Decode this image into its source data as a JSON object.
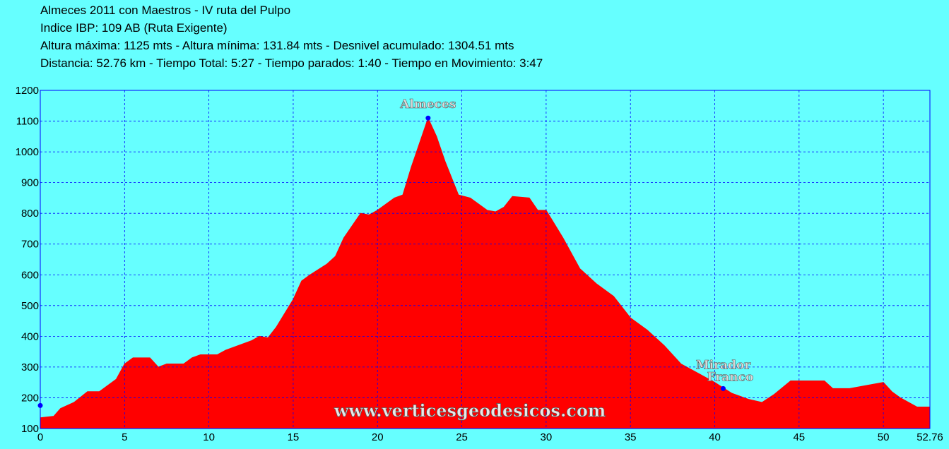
{
  "chart_data": {
    "type": "area",
    "title_lines": [
      "Almeces 2011 con Maestros - IV ruta del Pulpo",
      "Indice IBP: 109 AB (Ruta Exigente)",
      "Altura máxima: 1125 mts - Altura mínima: 131.84 mts - Desnivel acumulado: 1304.51 mts",
      "Distancia: 52.76 km - Tiempo Total: 5:27 - Tiempo parados: 1:40 - Tiempo en Movimiento: 3:47"
    ],
    "x": [
      0,
      0.8,
      1.2,
      2,
      2.8,
      3.5,
      4.5,
      5,
      5.5,
      6.5,
      7,
      7.5,
      8.5,
      9,
      9.5,
      10.5,
      11,
      12,
      12.5,
      13,
      13.5,
      14,
      15,
      15.5,
      16,
      17,
      17.5,
      18,
      19,
      19.5,
      20,
      21,
      21.5,
      22,
      22.5,
      23,
      23.5,
      24,
      24.8,
      25.5,
      26.5,
      27,
      27.5,
      28,
      29,
      29.5,
      30,
      31,
      32,
      33,
      34,
      35,
      36,
      37,
      38,
      39,
      40,
      41,
      42,
      42.8,
      43.5,
      44.5,
      46.5,
      47,
      48,
      49,
      50,
      50.5,
      51,
      52,
      52.76
    ],
    "values": [
      135,
      140,
      165,
      185,
      220,
      220,
      260,
      310,
      330,
      330,
      300,
      310,
      310,
      330,
      340,
      340,
      355,
      375,
      385,
      400,
      395,
      430,
      520,
      580,
      600,
      635,
      660,
      720,
      800,
      795,
      810,
      850,
      860,
      950,
      1030,
      1110,
      1050,
      970,
      860,
      850,
      810,
      805,
      820,
      855,
      850,
      810,
      810,
      720,
      620,
      570,
      530,
      460,
      420,
      370,
      310,
      280,
      250,
      215,
      195,
      185,
      210,
      255,
      255,
      230,
      230,
      240,
      250,
      220,
      200,
      170,
      170
    ],
    "color": "#ff0000",
    "xlim": [
      0,
      52.76
    ],
    "ylim": [
      100,
      1200
    ],
    "xticks": [
      0,
      5,
      10,
      15,
      20,
      25,
      30,
      35,
      40,
      45,
      50,
      52.76
    ],
    "yticks": [
      100,
      200,
      300,
      400,
      500,
      600,
      700,
      800,
      900,
      1000,
      1100,
      1200
    ],
    "grid": true,
    "markers": [
      {
        "x": 0,
        "y": 175
      },
      {
        "label": "Almeces",
        "x": 23,
        "y": 1110
      },
      {
        "label": "Mirador Franco",
        "x": 40.5,
        "y": 230
      }
    ],
    "watermark": "www.verticesgeodesicos.com"
  }
}
